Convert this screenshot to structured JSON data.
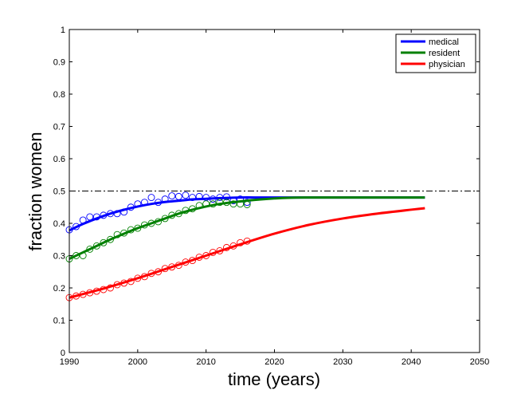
{
  "chart_data": {
    "type": "line",
    "title": "",
    "xlabel": "time (years)",
    "ylabel": "fraction women",
    "xlim": [
      1990,
      2050
    ],
    "ylim": [
      0,
      1
    ],
    "x_ticks": [
      "1990",
      "2000",
      "2010",
      "2020",
      "2030",
      "2040",
      "2050"
    ],
    "y_ticks": [
      "0",
      "0.1",
      "0.2",
      "0.3",
      "0.4",
      "0.5",
      "0.6",
      "0.7",
      "0.8",
      "0.9",
      "1"
    ],
    "grid": false,
    "legend_position": "top-right",
    "reference_line": {
      "y": 0.5,
      "style": "dash-dot",
      "color": "#000000"
    },
    "series": [
      {
        "name": "medical",
        "color": "#0000ff",
        "model": {
          "x": [
            1990,
            1992,
            1994,
            1996,
            1998,
            2000,
            2002,
            2004,
            2006,
            2008,
            2010,
            2012,
            2015,
            2018,
            2020,
            2025,
            2030,
            2035,
            2042
          ],
          "y": [
            0.378,
            0.398,
            0.415,
            0.43,
            0.442,
            0.452,
            0.46,
            0.466,
            0.47,
            0.474,
            0.476,
            0.478,
            0.48,
            0.48,
            0.48,
            0.48,
            0.48,
            0.48,
            0.48
          ]
        },
        "observed": {
          "x": [
            1990,
            1991,
            1992,
            1993,
            1994,
            1995,
            1996,
            1997,
            1998,
            1999,
            2000,
            2001,
            2002,
            2003,
            2004,
            2005,
            2006,
            2007,
            2008,
            2009,
            2010,
            2011,
            2012,
            2013,
            2014,
            2015,
            2016
          ],
          "y": [
            0.38,
            0.39,
            0.41,
            0.42,
            0.42,
            0.425,
            0.43,
            0.43,
            0.435,
            0.45,
            0.46,
            0.465,
            0.48,
            0.465,
            0.475,
            0.485,
            0.483,
            0.487,
            0.48,
            0.483,
            0.48,
            0.475,
            0.48,
            0.482,
            0.47,
            0.475,
            0.465
          ]
        }
      },
      {
        "name": "resident",
        "color": "#008000",
        "model": {
          "x": [
            1990,
            1992,
            1994,
            1996,
            1998,
            2000,
            2002,
            2004,
            2006,
            2008,
            2010,
            2012,
            2015,
            2018,
            2020,
            2022,
            2025,
            2030,
            2035,
            2042
          ],
          "y": [
            0.29,
            0.31,
            0.33,
            0.35,
            0.368,
            0.385,
            0.4,
            0.415,
            0.43,
            0.442,
            0.452,
            0.46,
            0.468,
            0.474,
            0.477,
            0.479,
            0.48,
            0.48,
            0.48,
            0.48
          ]
        },
        "observed": {
          "x": [
            1990,
            1991,
            1992,
            1993,
            1994,
            1995,
            1996,
            1997,
            1998,
            1999,
            2000,
            2001,
            2002,
            2003,
            2004,
            2005,
            2006,
            2007,
            2008,
            2009,
            2010,
            2011,
            2012,
            2013,
            2014,
            2015,
            2016
          ],
          "y": [
            0.29,
            0.3,
            0.3,
            0.32,
            0.33,
            0.34,
            0.35,
            0.365,
            0.37,
            0.38,
            0.385,
            0.395,
            0.4,
            0.405,
            0.415,
            0.425,
            0.43,
            0.44,
            0.445,
            0.455,
            0.46,
            0.46,
            0.465,
            0.465,
            0.46,
            0.46,
            0.458
          ]
        }
      },
      {
        "name": "physician",
        "color": "#ff0000",
        "model": {
          "x": [
            1990,
            1995,
            2000,
            2005,
            2010,
            2015,
            2020,
            2025,
            2030,
            2035,
            2042
          ],
          "y": [
            0.17,
            0.198,
            0.23,
            0.265,
            0.3,
            0.335,
            0.368,
            0.395,
            0.415,
            0.43,
            0.447
          ]
        },
        "observed": {
          "x": [
            1990,
            1991,
            1992,
            1993,
            1994,
            1995,
            1996,
            1997,
            1998,
            1999,
            2000,
            2001,
            2002,
            2003,
            2004,
            2005,
            2006,
            2007,
            2008,
            2009,
            2010,
            2011,
            2012,
            2013,
            2014,
            2015,
            2016
          ],
          "y": [
            0.17,
            0.175,
            0.18,
            0.185,
            0.19,
            0.195,
            0.2,
            0.21,
            0.215,
            0.22,
            0.23,
            0.235,
            0.245,
            0.25,
            0.26,
            0.265,
            0.27,
            0.28,
            0.285,
            0.295,
            0.3,
            0.31,
            0.315,
            0.325,
            0.33,
            0.34,
            0.345
          ]
        }
      }
    ]
  }
}
